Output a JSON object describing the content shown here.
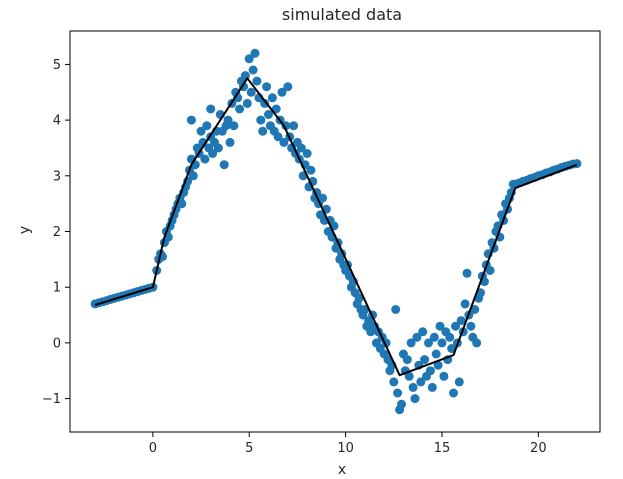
{
  "chart_data": {
    "type": "scatter",
    "title": "simulated data",
    "xlabel": "x",
    "ylabel": "y",
    "xlim": [
      -4.3,
      23.2
    ],
    "ylim": [
      -1.6,
      5.6
    ],
    "xticks": [
      0,
      5,
      10,
      15,
      20
    ],
    "xtick_labels": [
      "0",
      "5",
      "10",
      "15",
      "20"
    ],
    "yticks": [
      -1,
      0,
      1,
      2,
      3,
      4,
      5
    ],
    "ytick_labels": [
      "−1",
      "0",
      "1",
      "2",
      "3",
      "4",
      "5"
    ],
    "grid": false,
    "series": [
      {
        "kind": "scatter",
        "color": "#1f77b4",
        "points": [
          [
            -3.0,
            0.7
          ],
          [
            -2.8,
            0.72
          ],
          [
            -2.6,
            0.74
          ],
          [
            -2.4,
            0.76
          ],
          [
            -2.2,
            0.78
          ],
          [
            -2.0,
            0.8
          ],
          [
            -1.8,
            0.82
          ],
          [
            -1.6,
            0.84
          ],
          [
            -1.4,
            0.86
          ],
          [
            -1.2,
            0.88
          ],
          [
            -1.0,
            0.9
          ],
          [
            -0.8,
            0.92
          ],
          [
            -0.6,
            0.94
          ],
          [
            -0.4,
            0.96
          ],
          [
            -0.2,
            0.98
          ],
          [
            0.0,
            1.0
          ],
          [
            0.2,
            1.3
          ],
          [
            0.3,
            1.5
          ],
          [
            0.4,
            1.6
          ],
          [
            0.5,
            1.55
          ],
          [
            0.6,
            1.8
          ],
          [
            0.7,
            2.0
          ],
          [
            0.8,
            1.9
          ],
          [
            0.9,
            2.1
          ],
          [
            1.0,
            2.2
          ],
          [
            1.1,
            2.3
          ],
          [
            1.2,
            2.4
          ],
          [
            1.3,
            2.5
          ],
          [
            1.4,
            2.6
          ],
          [
            1.5,
            2.5
          ],
          [
            1.6,
            2.7
          ],
          [
            1.7,
            2.8
          ],
          [
            1.8,
            2.9
          ],
          [
            1.9,
            3.1
          ],
          [
            2.0,
            3.3
          ],
          [
            2.0,
            4.0
          ],
          [
            2.1,
            3.0
          ],
          [
            2.2,
            3.2
          ],
          [
            2.3,
            3.5
          ],
          [
            2.4,
            3.4
          ],
          [
            2.5,
            3.8
          ],
          [
            2.6,
            3.6
          ],
          [
            2.7,
            3.3
          ],
          [
            2.8,
            3.9
          ],
          [
            2.9,
            3.5
          ],
          [
            3.0,
            3.7
          ],
          [
            3.0,
            4.2
          ],
          [
            3.1,
            3.4
          ],
          [
            3.2,
            3.6
          ],
          [
            3.3,
            3.8
          ],
          [
            3.4,
            3.5
          ],
          [
            3.5,
            4.1
          ],
          [
            3.6,
            3.8
          ],
          [
            3.7,
            3.2
          ],
          [
            3.8,
            3.9
          ],
          [
            3.9,
            4.0
          ],
          [
            4.0,
            3.6
          ],
          [
            4.1,
            4.3
          ],
          [
            4.2,
            3.9
          ],
          [
            4.3,
            4.5
          ],
          [
            4.4,
            4.4
          ],
          [
            4.5,
            4.2
          ],
          [
            4.6,
            4.7
          ],
          [
            4.7,
            4.6
          ],
          [
            4.8,
            4.8
          ],
          [
            4.9,
            4.3
          ],
          [
            5.0,
            5.1
          ],
          [
            5.1,
            4.5
          ],
          [
            5.2,
            4.9
          ],
          [
            5.3,
            5.2
          ],
          [
            5.4,
            4.7
          ],
          [
            5.5,
            4.4
          ],
          [
            5.6,
            4.0
          ],
          [
            5.7,
            3.8
          ],
          [
            5.8,
            4.3
          ],
          [
            5.9,
            4.6
          ],
          [
            6.0,
            4.1
          ],
          [
            6.1,
            3.9
          ],
          [
            6.2,
            4.4
          ],
          [
            6.3,
            3.8
          ],
          [
            6.4,
            4.2
          ],
          [
            6.5,
            3.7
          ],
          [
            6.6,
            4.0
          ],
          [
            6.7,
            4.5
          ],
          [
            6.8,
            3.6
          ],
          [
            6.9,
            3.9
          ],
          [
            7.0,
            4.6
          ],
          [
            7.1,
            3.7
          ],
          [
            7.2,
            3.5
          ],
          [
            7.3,
            3.9
          ],
          [
            7.4,
            3.4
          ],
          [
            7.5,
            3.6
          ],
          [
            7.6,
            3.3
          ],
          [
            7.7,
            3.5
          ],
          [
            7.8,
            3.0
          ],
          [
            7.9,
            3.2
          ],
          [
            8.0,
            3.4
          ],
          [
            8.1,
            2.8
          ],
          [
            8.2,
            3.1
          ],
          [
            8.3,
            2.9
          ],
          [
            8.4,
            2.6
          ],
          [
            8.5,
            2.7
          ],
          [
            8.6,
            2.5
          ],
          [
            8.7,
            2.3
          ],
          [
            8.8,
            2.6
          ],
          [
            8.9,
            2.2
          ],
          [
            9.0,
            2.4
          ],
          [
            9.1,
            2.0
          ],
          [
            9.2,
            2.2
          ],
          [
            9.3,
            1.9
          ],
          [
            9.4,
            2.1
          ],
          [
            9.5,
            1.7
          ],
          [
            9.6,
            1.8
          ],
          [
            9.7,
            1.5
          ],
          [
            9.8,
            1.6
          ],
          [
            9.9,
            1.4
          ],
          [
            10.0,
            1.3
          ],
          [
            10.1,
            1.4
          ],
          [
            10.2,
            1.2
          ],
          [
            10.3,
            1.0
          ],
          [
            10.4,
            1.1
          ],
          [
            10.5,
            0.9
          ],
          [
            10.6,
            0.7
          ],
          [
            10.7,
            0.8
          ],
          [
            10.8,
            0.6
          ],
          [
            10.9,
            0.5
          ],
          [
            11.0,
            0.6
          ],
          [
            11.1,
            0.3
          ],
          [
            11.2,
            0.4
          ],
          [
            11.3,
            0.2
          ],
          [
            11.4,
            0.5
          ],
          [
            11.5,
            0.3
          ],
          [
            11.6,
            0.0
          ],
          [
            11.7,
            0.2
          ],
          [
            11.8,
            -0.1
          ],
          [
            11.9,
            0.1
          ],
          [
            12.0,
            -0.2
          ],
          [
            12.1,
            0.0
          ],
          [
            12.2,
            -0.3
          ],
          [
            12.3,
            -0.5
          ],
          [
            12.4,
            -0.4
          ],
          [
            12.5,
            -0.7
          ],
          [
            12.6,
            0.6
          ],
          [
            12.7,
            -0.9
          ],
          [
            12.8,
            -1.2
          ],
          [
            12.9,
            -1.1
          ],
          [
            13.0,
            -0.2
          ],
          [
            13.1,
            -0.5
          ],
          [
            13.2,
            -0.3
          ],
          [
            13.3,
            -0.6
          ],
          [
            13.4,
            0.0
          ],
          [
            13.5,
            -0.8
          ],
          [
            13.6,
            -1.0
          ],
          [
            13.7,
            0.1
          ],
          [
            13.8,
            -0.4
          ],
          [
            13.9,
            -0.7
          ],
          [
            14.0,
            0.2
          ],
          [
            14.1,
            -0.3
          ],
          [
            14.2,
            -0.6
          ],
          [
            14.3,
            0.0
          ],
          [
            14.4,
            -0.5
          ],
          [
            14.5,
            -0.8
          ],
          [
            14.6,
            0.1
          ],
          [
            14.7,
            -0.2
          ],
          [
            14.8,
            -0.4
          ],
          [
            14.9,
            0.3
          ],
          [
            15.0,
            0.0
          ],
          [
            15.1,
            -0.6
          ],
          [
            15.2,
            0.2
          ],
          [
            15.3,
            -0.3
          ],
          [
            15.4,
            0.1
          ],
          [
            15.5,
            -0.1
          ],
          [
            15.6,
            -0.9
          ],
          [
            15.7,
            0.3
          ],
          [
            15.8,
            0.0
          ],
          [
            15.9,
            -0.7
          ],
          [
            16.0,
            0.4
          ],
          [
            16.1,
            0.2
          ],
          [
            16.2,
            0.7
          ],
          [
            16.3,
            1.25
          ],
          [
            16.4,
            0.5
          ],
          [
            16.5,
            0.3
          ],
          [
            16.6,
            0.1
          ],
          [
            16.7,
            0.6
          ],
          [
            16.8,
            0.0
          ],
          [
            16.9,
            0.8
          ],
          [
            17.0,
            0.9
          ],
          [
            17.1,
            1.2
          ],
          [
            17.2,
            1.1
          ],
          [
            17.3,
            1.4
          ],
          [
            17.4,
            1.6
          ],
          [
            17.5,
            1.3
          ],
          [
            17.6,
            1.8
          ],
          [
            17.7,
            1.7
          ],
          [
            17.8,
            2.0
          ],
          [
            17.9,
            2.1
          ],
          [
            18.0,
            1.9
          ],
          [
            18.1,
            2.3
          ],
          [
            18.2,
            2.2
          ],
          [
            18.3,
            2.5
          ],
          [
            18.4,
            2.4
          ],
          [
            18.5,
            2.6
          ],
          [
            18.6,
            2.7
          ],
          [
            18.7,
            2.85
          ],
          [
            18.8,
            2.85
          ],
          [
            19.0,
            2.87
          ],
          [
            19.2,
            2.9
          ],
          [
            19.4,
            2.92
          ],
          [
            19.6,
            2.95
          ],
          [
            19.8,
            2.97
          ],
          [
            20.0,
            3.0
          ],
          [
            20.2,
            3.02
          ],
          [
            20.4,
            3.05
          ],
          [
            20.6,
            3.07
          ],
          [
            20.8,
            3.1
          ],
          [
            21.0,
            3.12
          ],
          [
            21.2,
            3.15
          ],
          [
            21.4,
            3.17
          ],
          [
            21.6,
            3.19
          ],
          [
            21.8,
            3.21
          ],
          [
            22.0,
            3.22
          ]
        ]
      },
      {
        "kind": "line",
        "color": "#000000",
        "points": [
          [
            -3.0,
            0.68
          ],
          [
            0.0,
            1.0
          ],
          [
            0.6,
            1.9
          ],
          [
            2.0,
            3.2
          ],
          [
            4.9,
            4.75
          ],
          [
            6.8,
            3.9
          ],
          [
            12.8,
            -0.58
          ],
          [
            15.6,
            -0.22
          ],
          [
            18.8,
            2.78
          ],
          [
            22.0,
            3.2
          ]
        ]
      }
    ]
  }
}
